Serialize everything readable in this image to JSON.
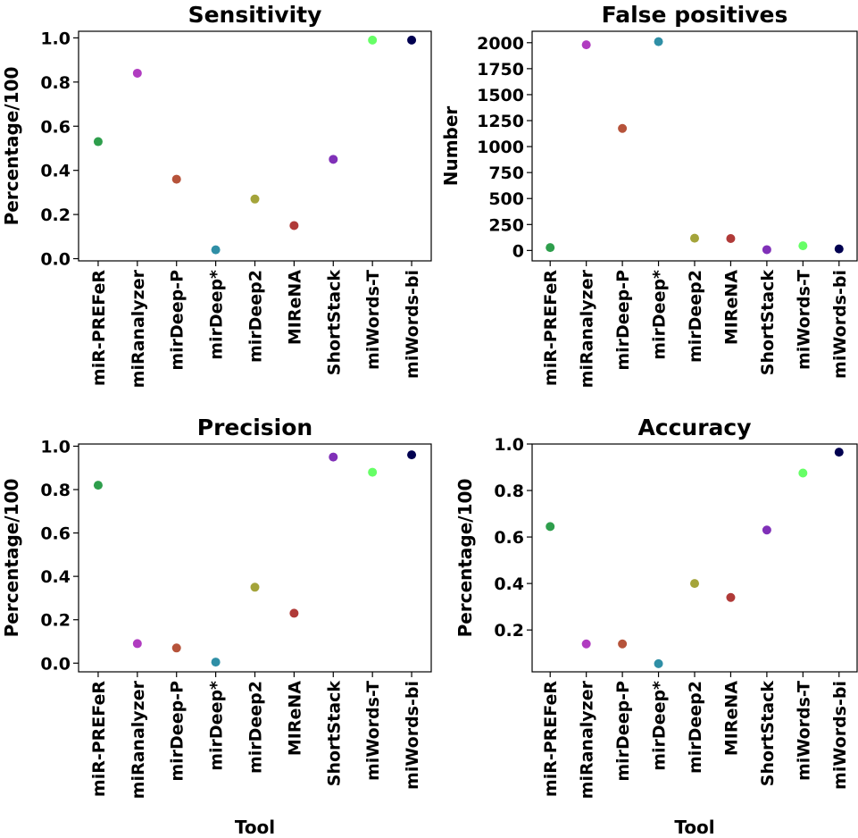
{
  "chart_data": [
    {
      "type": "scatter",
      "title": "Sensitivity",
      "xlabel": "",
      "ylabel": "Percentage/100",
      "categories": [
        "miR-PREFeR",
        "miRanalyzer",
        "mirDeep-P",
        "mirDeep*",
        "mirDeep2",
        "MIReNA",
        "ShortStack",
        "miWords-T",
        "miWords-bi"
      ],
      "values": [
        0.53,
        0.84,
        0.36,
        0.04,
        0.27,
        0.15,
        0.45,
        0.99,
        0.99
      ],
      "ylim": [
        -0.01,
        1.03
      ],
      "yticks": [
        0.0,
        0.2,
        0.4,
        0.6,
        0.8,
        1.0
      ],
      "ytick_labels": [
        "0.0",
        "0.2",
        "0.4",
        "0.6",
        "0.8",
        "1.0"
      ]
    },
    {
      "type": "scatter",
      "title": "False positives",
      "xlabel": "",
      "ylabel": "Number",
      "categories": [
        "miR-PREFeR",
        "miRanalyzer",
        "mirDeep-P",
        "mirDeep*",
        "mirDeep2",
        "MIReNA",
        "ShortStack",
        "miWords-T",
        "miWords-bi"
      ],
      "values": [
        28,
        1980,
        1175,
        2010,
        118,
        115,
        8,
        45,
        15
      ],
      "ylim": [
        -100,
        2110
      ],
      "yticks": [
        0,
        250,
        500,
        750,
        1000,
        1250,
        1500,
        1750,
        2000
      ],
      "ytick_labels": [
        "0",
        "250",
        "500",
        "750",
        "1000",
        "1250",
        "1500",
        "1750",
        "2000"
      ]
    },
    {
      "type": "scatter",
      "title": "Precision",
      "xlabel": "Tool",
      "ylabel": "Percentage/100",
      "categories": [
        "miR-PREFeR",
        "miRanalyzer",
        "mirDeep-P",
        "mirDeep*",
        "mirDeep2",
        "MIReNA",
        "ShortStack",
        "miWords-T",
        "miWords-bi"
      ],
      "values": [
        0.82,
        0.09,
        0.07,
        0.005,
        0.35,
        0.23,
        0.95,
        0.88,
        0.96
      ],
      "ylim": [
        -0.04,
        1.01
      ],
      "yticks": [
        0.0,
        0.2,
        0.4,
        0.6,
        0.8,
        1.0
      ],
      "ytick_labels": [
        "0.0",
        "0.2",
        "0.4",
        "0.6",
        "0.8",
        "1.0"
      ]
    },
    {
      "type": "scatter",
      "title": "Accuracy",
      "xlabel": "Tool",
      "ylabel": "Percentage/100",
      "categories": [
        "miR-PREFeR",
        "miRanalyzer",
        "mirDeep-P",
        "mirDeep*",
        "mirDeep2",
        "MIReNA",
        "ShortStack",
        "miWords-T",
        "miWords-bi"
      ],
      "values": [
        0.645,
        0.14,
        0.14,
        0.055,
        0.4,
        0.34,
        0.63,
        0.875,
        0.965
      ],
      "ylim": [
        0.02,
        1.0
      ],
      "yticks": [
        0.2,
        0.4,
        0.6,
        0.8,
        1.0
      ],
      "ytick_labels": [
        "0.2",
        "0.4",
        "0.6",
        "0.8",
        "1.0"
      ]
    }
  ],
  "colors": [
    "#2e9e4c",
    "#b03cc0",
    "#b6533a",
    "#2f8fa6",
    "#a4a43a",
    "#b03a38",
    "#8030b8",
    "#66ff66",
    "#000050"
  ]
}
